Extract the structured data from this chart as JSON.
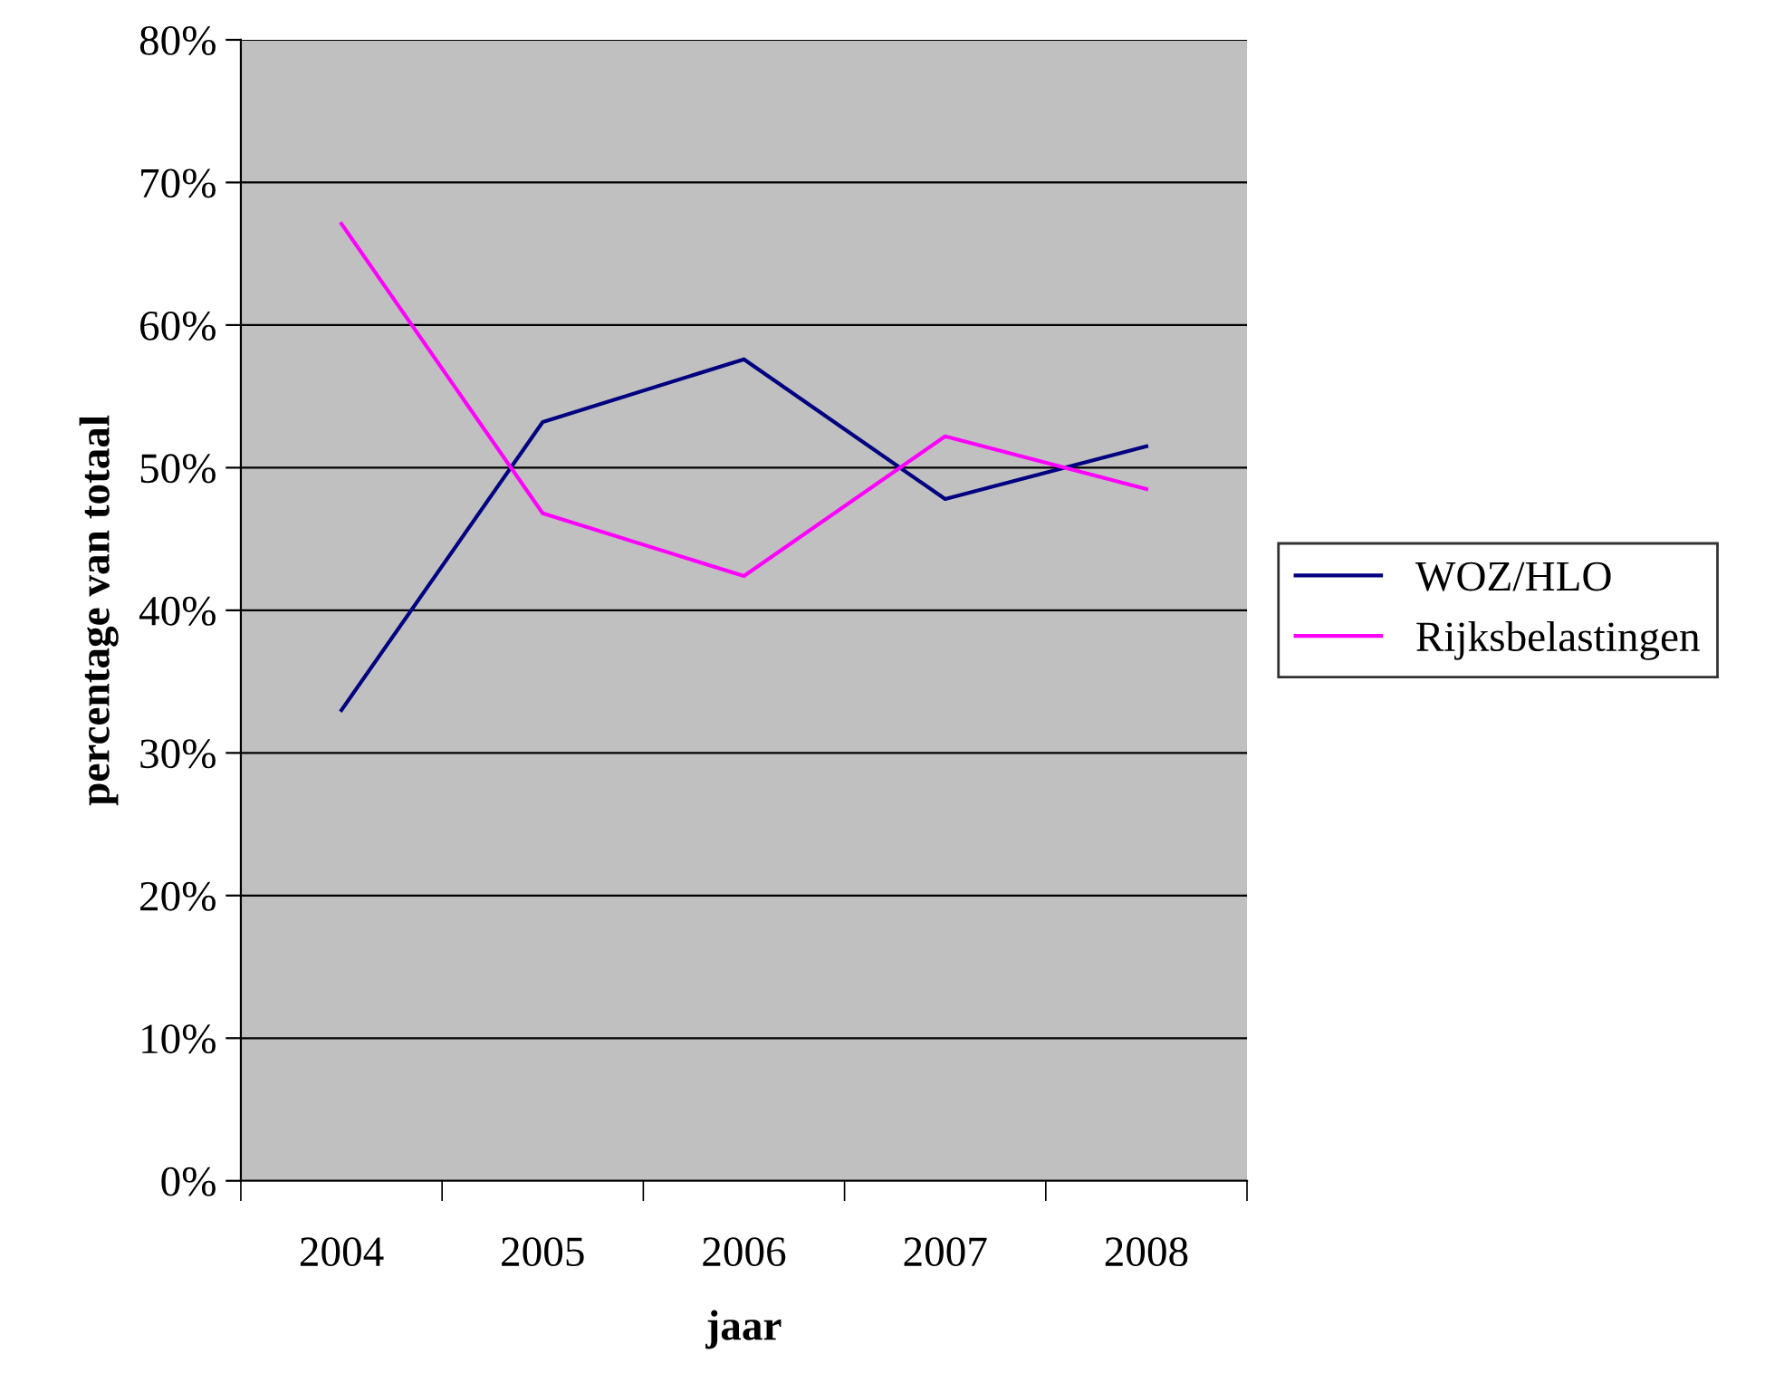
{
  "chart_data": {
    "type": "line",
    "xlabel": "jaar",
    "ylabel": "percentage van totaal",
    "categories": [
      "2004",
      "2005",
      "2006",
      "2007",
      "2008"
    ],
    "series": [
      {
        "name": "WOZ/HLO",
        "color": "#000080",
        "values": [
          33,
          53.2,
          57.6,
          47.8,
          51.5
        ]
      },
      {
        "name": "Rijksbelastingen",
        "color": "#ff00ff",
        "values": [
          67.1,
          46.8,
          42.4,
          52.2,
          48.5
        ]
      }
    ],
    "ylim": [
      0,
      80
    ],
    "yticks": [
      {
        "value": 0,
        "label": "0%"
      },
      {
        "value": 10,
        "label": "10%"
      },
      {
        "value": 20,
        "label": "20%"
      },
      {
        "value": 30,
        "label": "30%"
      },
      {
        "value": 40,
        "label": "40%"
      },
      {
        "value": 50,
        "label": "50%"
      },
      {
        "value": 60,
        "label": "60%"
      },
      {
        "value": 70,
        "label": "70%"
      },
      {
        "value": 80,
        "label": "80%"
      }
    ],
    "grid": "y",
    "legend": "right",
    "marker": "none",
    "line_style": "solid"
  }
}
